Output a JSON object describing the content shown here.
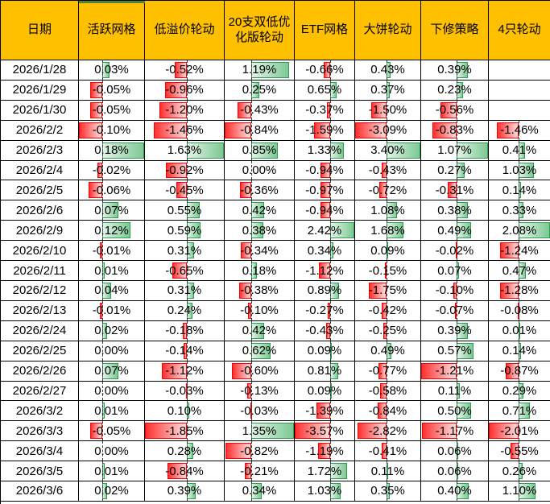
{
  "colors": {
    "header_bg": "#FFC000",
    "grid_line": "#000000",
    "positive_bar_border": "#2f9e55",
    "positive_bar_fill": "#7cc993",
    "negative_bar_border": "#ff0000",
    "negative_bar_fill": "#ff3030",
    "header_strip": "#538135"
  },
  "chart_data": {
    "type": "table",
    "title": "",
    "columns": [
      "日期",
      "活跃网格",
      "低溢价轮动",
      "20支双低优化版轮动",
      "ETF网格",
      "大饼轮动",
      "下修策略",
      "4只轮动"
    ],
    "value_format": "percent_2dp",
    "conditional_formatting": "databar_with_axis",
    "rows": [
      {
        "date": "2026/1/28",
        "values": [
          0.03,
          -0.52,
          1.19,
          -0.66,
          0.43,
          0.39,
          null
        ]
      },
      {
        "date": "2026/1/29",
        "values": [
          -0.05,
          -0.96,
          0.25,
          0.65,
          0.37,
          0.23,
          null
        ]
      },
      {
        "date": "2026/1/30",
        "values": [
          -0.05,
          -1.2,
          -0.43,
          -0.37,
          -1.5,
          -0.56,
          null
        ]
      },
      {
        "date": "2026/2/2",
        "values": [
          -0.1,
          -1.46,
          -0.84,
          -1.59,
          -3.09,
          -0.83,
          -1.46
        ]
      },
      {
        "date": "2026/2/3",
        "values": [
          0.18,
          1.63,
          0.85,
          1.33,
          3.4,
          1.07,
          0.41
        ]
      },
      {
        "date": "2026/2/4",
        "values": [
          -0.02,
          -0.92,
          0.0,
          -0.94,
          -0.43,
          0.27,
          1.03
        ]
      },
      {
        "date": "2026/2/5",
        "values": [
          -0.06,
          -0.45,
          -0.36,
          -0.97,
          -0.72,
          -0.31,
          0.14
        ]
      },
      {
        "date": "2026/2/6",
        "values": [
          0.07,
          0.55,
          0.42,
          -0.94,
          1.08,
          0.38,
          0.33
        ]
      },
      {
        "date": "2026/2/9",
        "values": [
          0.12,
          0.59,
          0.38,
          2.42,
          1.68,
          0.49,
          2.08
        ]
      },
      {
        "date": "2026/2/10",
        "values": [
          -0.01,
          0.31,
          -0.34,
          0.34,
          0.09,
          -0.02,
          -1.24
        ]
      },
      {
        "date": "2026/2/11",
        "values": [
          0.01,
          -0.65,
          0.18,
          -1.12,
          -0.15,
          0.07,
          0.47
        ]
      },
      {
        "date": "2026/2/12",
        "values": [
          0.04,
          0.31,
          -0.38,
          0.89,
          -1.75,
          -0.1,
          -1.28
        ]
      },
      {
        "date": "2026/2/13",
        "values": [
          -0.01,
          0.24,
          -0.1,
          -0.27,
          -0.42,
          -0.07,
          -0.08
        ]
      },
      {
        "date": "2026/2/24",
        "values": [
          0.02,
          -0.18,
          0.42,
          -0.43,
          -0.25,
          0.39,
          0.01
        ]
      },
      {
        "date": "2026/2/25",
        "values": [
          0.0,
          -0.14,
          0.62,
          0.09,
          0.49,
          0.57,
          0.14
        ]
      },
      {
        "date": "2026/2/26",
        "values": [
          0.07,
          -1.12,
          -0.6,
          0.81,
          -0.77,
          -1.21,
          -0.87
        ]
      },
      {
        "date": "2026/2/27",
        "values": [
          0.0,
          -0.03,
          -0.13,
          0.09,
          -0.58,
          0.11,
          0.29
        ]
      },
      {
        "date": "2026/3/2",
        "values": [
          0.01,
          0.1,
          -0.03,
          -1.39,
          -0.84,
          0.5,
          0.71
        ]
      },
      {
        "date": "2026/3/3",
        "values": [
          -0.05,
          -1.85,
          1.35,
          -3.57,
          -2.82,
          -1.17,
          -2.01
        ]
      },
      {
        "date": "2026/3/4",
        "values": [
          0.0,
          0.28,
          -0.82,
          -1.19,
          -0.41,
          0.06,
          -0.55
        ]
      },
      {
        "date": "2026/3/5",
        "values": [
          0.01,
          -0.84,
          -0.21,
          1.72,
          0.11,
          0.06,
          0.26
        ]
      },
      {
        "date": "2026/3/6",
        "values": [
          0.02,
          0.39,
          0.34,
          1.03,
          0.35,
          0.4,
          1.1
        ]
      }
    ]
  }
}
